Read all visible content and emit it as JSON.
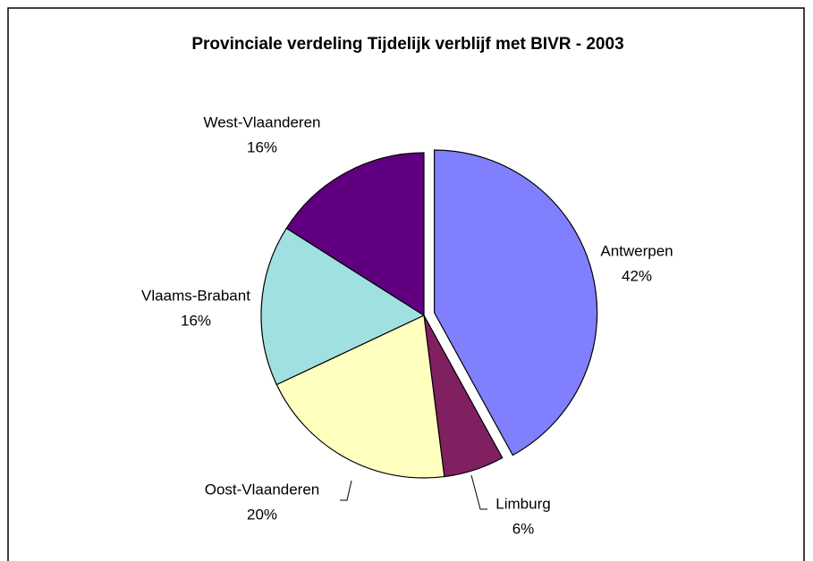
{
  "chart_data": {
    "type": "pie",
    "title": "Provinciale verdeling Tijdelijk verblijf met BIVR - 2003",
    "categories": [
      "Antwerpen",
      "Limburg",
      "Oost-Vlaanderen",
      "Vlaams-Brabant",
      "West-Vlaanderen"
    ],
    "values": [
      42,
      6,
      20,
      16,
      16
    ],
    "value_labels": [
      "42%",
      "6%",
      "20%",
      "16%",
      "16%"
    ],
    "colors": [
      "#8080ff",
      "#802060",
      "#ffffc0",
      "#a0e0e0",
      "#600080"
    ]
  }
}
